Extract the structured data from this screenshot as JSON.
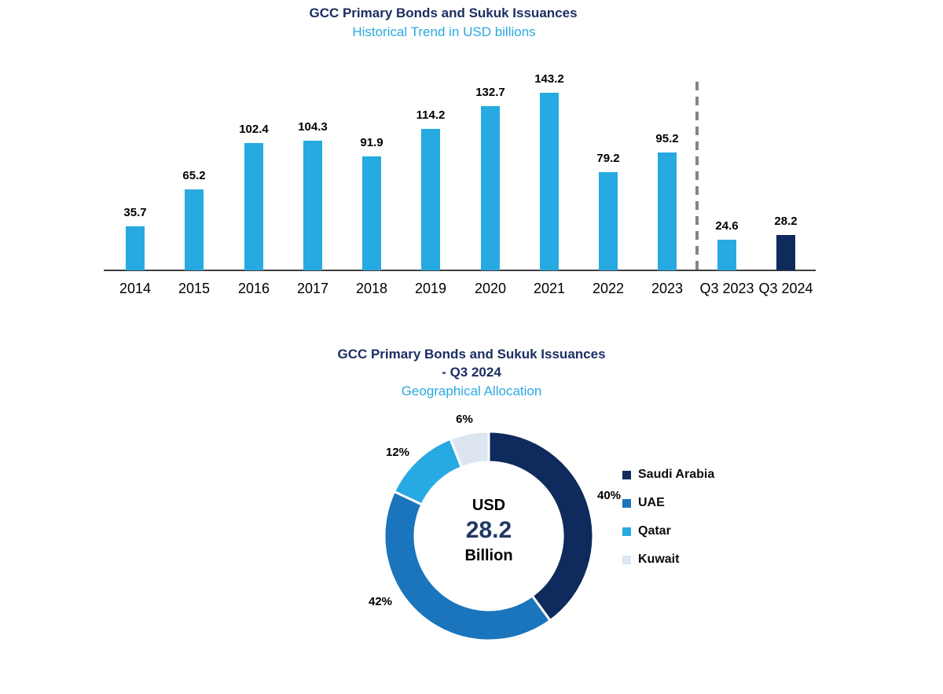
{
  "colors": {
    "light_blue": "#27AAE1",
    "medium_blue": "#1B75BC",
    "navy": "#0F2A5C",
    "pale_blue": "#DCE5F0",
    "title_navy": "#1C2E62",
    "subtitle_blue": "#2BA9E0",
    "axis_line": "#3F3F3F",
    "separator_gray": "#848484"
  },
  "chart_data": [
    {
      "type": "bar",
      "title": "GCC Primary Bonds and Sukuk Issuances",
      "subtitle": "Historical Trend in USD billions",
      "categories": [
        "2014",
        "2015",
        "2016",
        "2017",
        "2018",
        "2019",
        "2020",
        "2021",
        "2022",
        "2023",
        "Q3 2023",
        "Q3 2024"
      ],
      "values": [
        35.7,
        65.2,
        102.4,
        104.3,
        91.9,
        114.2,
        132.7,
        143.2,
        79.2,
        95.2,
        24.6,
        28.2
      ],
      "data_labels": [
        "35.7",
        "65.2",
        "102.4",
        "104.3",
        "91.9",
        "114.2",
        "132.7",
        "143.2",
        "79.2",
        "95.2",
        "24.6",
        "28.2"
      ],
      "bar_color": "#27AAE1",
      "highlight_index": 11,
      "highlight_color": "#0F2A5C",
      "separator_after_index": 9,
      "xlabel": "",
      "ylabel": "",
      "ylim": [
        0,
        155
      ],
      "grid": false,
      "legend": false
    },
    {
      "type": "pie",
      "variant": "donut",
      "title": "GCC Primary Bonds and Sukuk Issuances - Q3 2024",
      "title_lines": [
        "GCC Primary Bonds and Sukuk Issuances",
        "- Q3 2024"
      ],
      "subtitle": "Geographical Allocation",
      "center_label": {
        "line1": "USD",
        "value": "28.2",
        "line3": "Billion"
      },
      "slices": [
        {
          "id": "saudi-arabia",
          "label": "Saudi Arabia",
          "pct": 40,
          "pct_label": "40%",
          "color": "#0F2A5C"
        },
        {
          "id": "uae",
          "label": "UAE",
          "pct": 42,
          "pct_label": "42%",
          "color": "#1B75BC"
        },
        {
          "id": "qatar",
          "label": "Qatar",
          "pct": 12,
          "pct_label": "12%",
          "color": "#27AAE1"
        },
        {
          "id": "kuwait",
          "label": "Kuwait",
          "pct": 6,
          "pct_label": "6%",
          "color": "#DCE5F0"
        }
      ],
      "start_angle_deg": 0,
      "direction": "clockwise",
      "legend_position": "right",
      "legend_order": [
        "Saudi Arabia",
        "UAE",
        "Qatar",
        "Kuwait"
      ]
    }
  ]
}
